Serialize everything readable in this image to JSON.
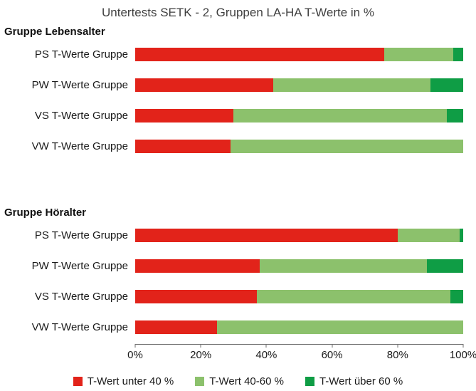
{
  "chart_data": {
    "type": "bar",
    "orientation": "horizontal",
    "stacked": true,
    "title": "Untertests SETK - 2, Gruppen LA-HA T-Werte in %",
    "xlabel": "",
    "ylabel": "",
    "xlim": [
      0,
      100
    ],
    "grid": false,
    "legend_position": "bottom",
    "x_tick_values": [
      0,
      20,
      40,
      60,
      80,
      100
    ],
    "x_ticks": [
      "0%",
      "20%",
      "40%",
      "60%",
      "80%",
      "100%"
    ],
    "series": [
      {
        "name": "T-Wert unter 40 %",
        "color": "#e2231a"
      },
      {
        "name": "T-Wert 40-60 %",
        "color": "#8cc16c"
      },
      {
        "name": "T-Wert über 60 %",
        "color": "#0f9d45"
      }
    ],
    "groups": [
      {
        "label": "Gruppe Lebensalter",
        "rows": [
          {
            "category": "PS T-Werte Gruppe",
            "values": [
              76,
              21,
              3
            ]
          },
          {
            "category": "PW T-Werte Gruppe",
            "values": [
              42,
              48,
              10
            ]
          },
          {
            "category": "VS T-Werte Gruppe",
            "values": [
              30,
              65,
              5
            ]
          },
          {
            "category": "VW T-Werte Gruppe",
            "values": [
              29,
              71,
              0
            ]
          }
        ]
      },
      {
        "label": "Gruppe Höralter",
        "rows": [
          {
            "category": "PS T-Werte Gruppe",
            "values": [
              80,
              19,
              1
            ]
          },
          {
            "category": "PW T-Werte Gruppe",
            "values": [
              38,
              51,
              11
            ]
          },
          {
            "category": "VS T-Werte Gruppe",
            "values": [
              37,
              59,
              4
            ]
          },
          {
            "category": "VW T-Werte Gruppe",
            "values": [
              25,
              75,
              0
            ]
          }
        ]
      }
    ]
  }
}
